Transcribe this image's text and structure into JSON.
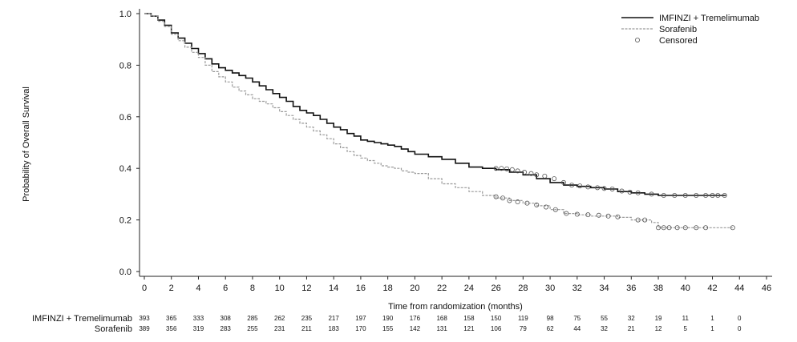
{
  "chart_data": {
    "type": "line",
    "title": "",
    "xlabel": "Time from randomization (months)",
    "ylabel": "Probability of Overall Survival",
    "xlim": [
      0,
      46
    ],
    "ylim": [
      0,
      1.0
    ],
    "x_ticks": [
      0,
      2,
      4,
      6,
      8,
      10,
      12,
      14,
      16,
      18,
      20,
      22,
      24,
      26,
      28,
      30,
      32,
      34,
      36,
      38,
      40,
      42,
      44,
      46
    ],
    "y_ticks": [
      "0.0",
      "0.2",
      "0.4",
      "0.6",
      "0.8",
      "1.0"
    ],
    "grid": false,
    "legend_position": "top-right",
    "legend": [
      {
        "label": "IMFINZI + Tremelimumab",
        "style": "solid",
        "color": "#111111"
      },
      {
        "label": "Sorafenib",
        "style": "dashed",
        "color": "#9a9a9a"
      },
      {
        "label": "Censored",
        "style": "circle",
        "color": "#555555"
      }
    ],
    "series": [
      {
        "name": "IMFINZI + Tremelimumab",
        "style": "solid",
        "color": "#111111",
        "x": [
          0,
          0.5,
          1,
          1.5,
          2,
          2.5,
          3,
          3.5,
          4,
          4.5,
          5,
          5.5,
          6,
          6.5,
          7,
          7.5,
          8,
          8.5,
          9,
          9.5,
          10,
          10.5,
          11,
          11.5,
          12,
          12.5,
          13,
          13.5,
          14,
          14.5,
          15,
          15.5,
          16,
          16.5,
          17,
          17.5,
          18,
          18.5,
          19,
          19.5,
          20,
          21,
          22,
          23,
          24,
          25,
          26,
          27,
          28,
          29,
          30,
          31,
          32,
          33,
          34,
          35,
          36,
          37,
          38,
          40,
          42,
          43
        ],
        "y": [
          1.0,
          0.99,
          0.975,
          0.955,
          0.925,
          0.905,
          0.885,
          0.865,
          0.845,
          0.825,
          0.805,
          0.79,
          0.78,
          0.77,
          0.76,
          0.75,
          0.735,
          0.72,
          0.705,
          0.69,
          0.675,
          0.66,
          0.64,
          0.625,
          0.615,
          0.605,
          0.59,
          0.575,
          0.56,
          0.55,
          0.535,
          0.525,
          0.51,
          0.505,
          0.5,
          0.495,
          0.49,
          0.485,
          0.475,
          0.465,
          0.455,
          0.445,
          0.435,
          0.42,
          0.405,
          0.4,
          0.395,
          0.385,
          0.375,
          0.36,
          0.345,
          0.335,
          0.33,
          0.325,
          0.32,
          0.31,
          0.305,
          0.3,
          0.295,
          0.295,
          0.295,
          0.295
        ],
        "censored_x": [
          26.0,
          26.4,
          26.8,
          27.2,
          27.6,
          28.1,
          28.6,
          29.0,
          29.6,
          30.3,
          31.0,
          31.6,
          32.2,
          32.8,
          33.5,
          34.0,
          34.6,
          35.3,
          35.9,
          36.5,
          37.5,
          38.4,
          39.2,
          40.0,
          40.8,
          41.5,
          42.0,
          42.4,
          42.9
        ],
        "censored_y": [
          0.4,
          0.4,
          0.398,
          0.395,
          0.39,
          0.385,
          0.38,
          0.375,
          0.37,
          0.36,
          0.345,
          0.335,
          0.332,
          0.328,
          0.325,
          0.322,
          0.32,
          0.312,
          0.308,
          0.305,
          0.3,
          0.295,
          0.295,
          0.295,
          0.295,
          0.295,
          0.295,
          0.295,
          0.295
        ]
      },
      {
        "name": "Sorafenib",
        "style": "dashed",
        "color": "#9a9a9a",
        "x": [
          0,
          0.5,
          1,
          1.5,
          2,
          2.5,
          3,
          3.5,
          4,
          4.5,
          5,
          5.5,
          6,
          6.5,
          7,
          7.5,
          8,
          8.5,
          9,
          9.5,
          10,
          10.5,
          11,
          11.5,
          12,
          12.5,
          13,
          13.5,
          14,
          14.5,
          15,
          15.5,
          16,
          16.5,
          17,
          17.5,
          18,
          18.5,
          19,
          19.5,
          20,
          21,
          22,
          23,
          24,
          25,
          26,
          27,
          28,
          29,
          30,
          31,
          32,
          33,
          34,
          35,
          36,
          37,
          37.5,
          38,
          40,
          42,
          43.5
        ],
        "y": [
          1.0,
          0.99,
          0.97,
          0.95,
          0.92,
          0.895,
          0.87,
          0.85,
          0.83,
          0.8,
          0.775,
          0.755,
          0.735,
          0.715,
          0.7,
          0.685,
          0.67,
          0.66,
          0.65,
          0.635,
          0.62,
          0.605,
          0.59,
          0.575,
          0.56,
          0.545,
          0.53,
          0.515,
          0.495,
          0.48,
          0.465,
          0.45,
          0.44,
          0.43,
          0.42,
          0.41,
          0.405,
          0.4,
          0.39,
          0.385,
          0.38,
          0.36,
          0.34,
          0.325,
          0.31,
          0.295,
          0.285,
          0.275,
          0.265,
          0.255,
          0.24,
          0.225,
          0.22,
          0.215,
          0.215,
          0.21,
          0.2,
          0.2,
          0.19,
          0.17,
          0.17,
          0.17,
          0.17
        ],
        "censored_x": [
          26.0,
          26.5,
          27.0,
          27.6,
          28.3,
          29.0,
          29.7,
          30.4,
          31.2,
          32.0,
          32.8,
          33.6,
          34.3,
          35.0,
          36.5,
          37.0,
          38.0,
          38.4,
          38.8,
          39.4,
          40.0,
          40.8,
          41.5,
          43.5
        ],
        "censored_y": [
          0.29,
          0.285,
          0.275,
          0.27,
          0.265,
          0.258,
          0.25,
          0.24,
          0.225,
          0.222,
          0.22,
          0.218,
          0.215,
          0.212,
          0.2,
          0.2,
          0.17,
          0.17,
          0.17,
          0.17,
          0.17,
          0.17,
          0.17,
          0.17
        ]
      }
    ],
    "risk_table": {
      "x": [
        0,
        2,
        4,
        6,
        8,
        10,
        12,
        14,
        16,
        18,
        20,
        22,
        24,
        26,
        28,
        30,
        32,
        34,
        36,
        38,
        40,
        42,
        44
      ],
      "rows": [
        {
          "label": "IMFINZI + Tremelimumab",
          "values": [
            "393",
            "365",
            "333",
            "308",
            "285",
            "262",
            "235",
            "217",
            "197",
            "190",
            "176",
            "168",
            "158",
            "150",
            "119",
            "98",
            "75",
            "55",
            "32",
            "19",
            "11",
            "1",
            "0"
          ]
        },
        {
          "label": "Sorafenib",
          "values": [
            "389",
            "356",
            "319",
            "283",
            "255",
            "231",
            "211",
            "183",
            "170",
            "155",
            "142",
            "131",
            "121",
            "106",
            "79",
            "62",
            "44",
            "32",
            "21",
            "12",
            "5",
            "1",
            "0"
          ]
        }
      ]
    }
  }
}
